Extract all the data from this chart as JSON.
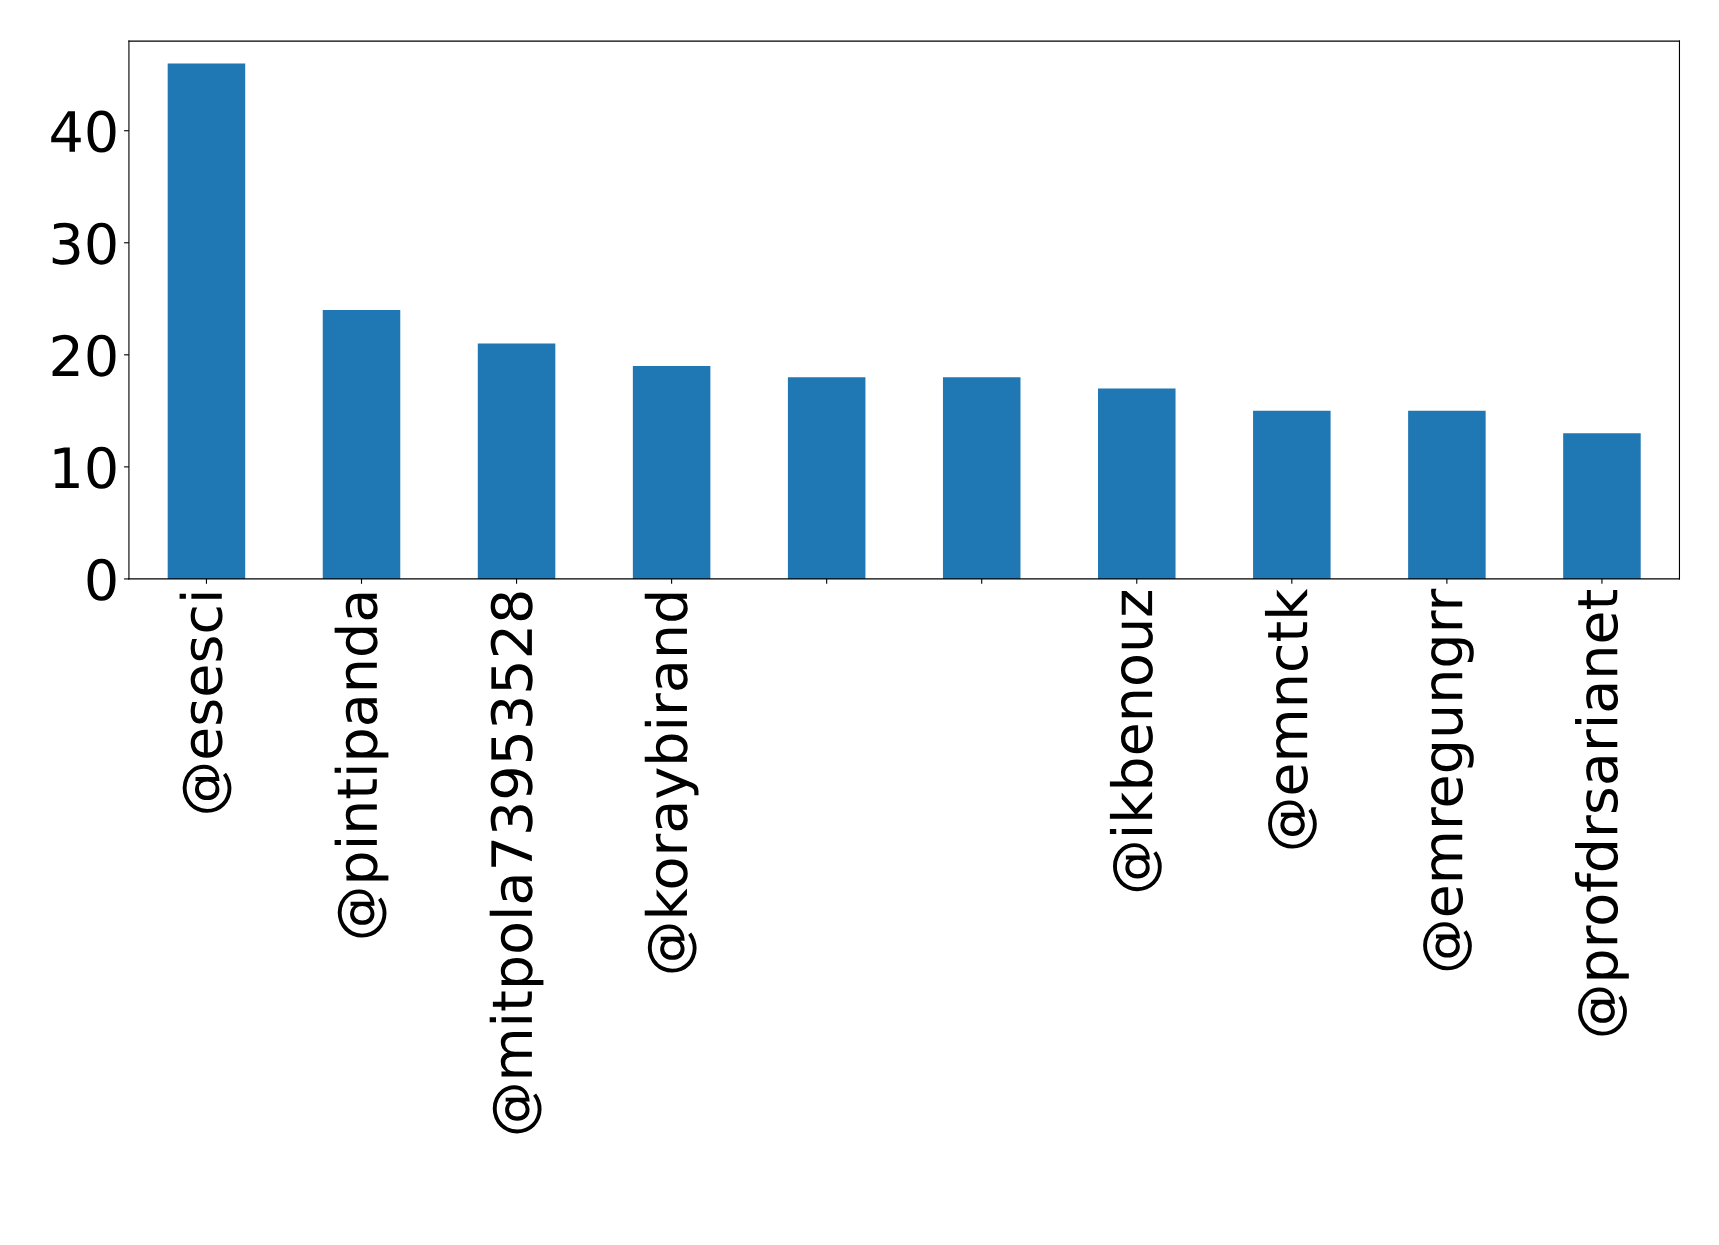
{
  "chart_data": {
    "type": "bar",
    "categories": [
      "@esesci",
      "@pintipanda",
      "@mitpola73953528",
      "@koraybirand",
      null,
      null,
      "@ikbenouz",
      "@emnctk",
      "@emregungrr",
      "@profdrsarianet"
    ],
    "values": [
      46,
      24,
      21,
      19,
      18,
      18,
      17,
      15,
      15,
      13
    ],
    "color": "#1f77b4",
    "ylim": [
      0,
      48
    ],
    "yticks": [
      0,
      10,
      20,
      30,
      40
    ],
    "grid": false,
    "legend": false
  }
}
